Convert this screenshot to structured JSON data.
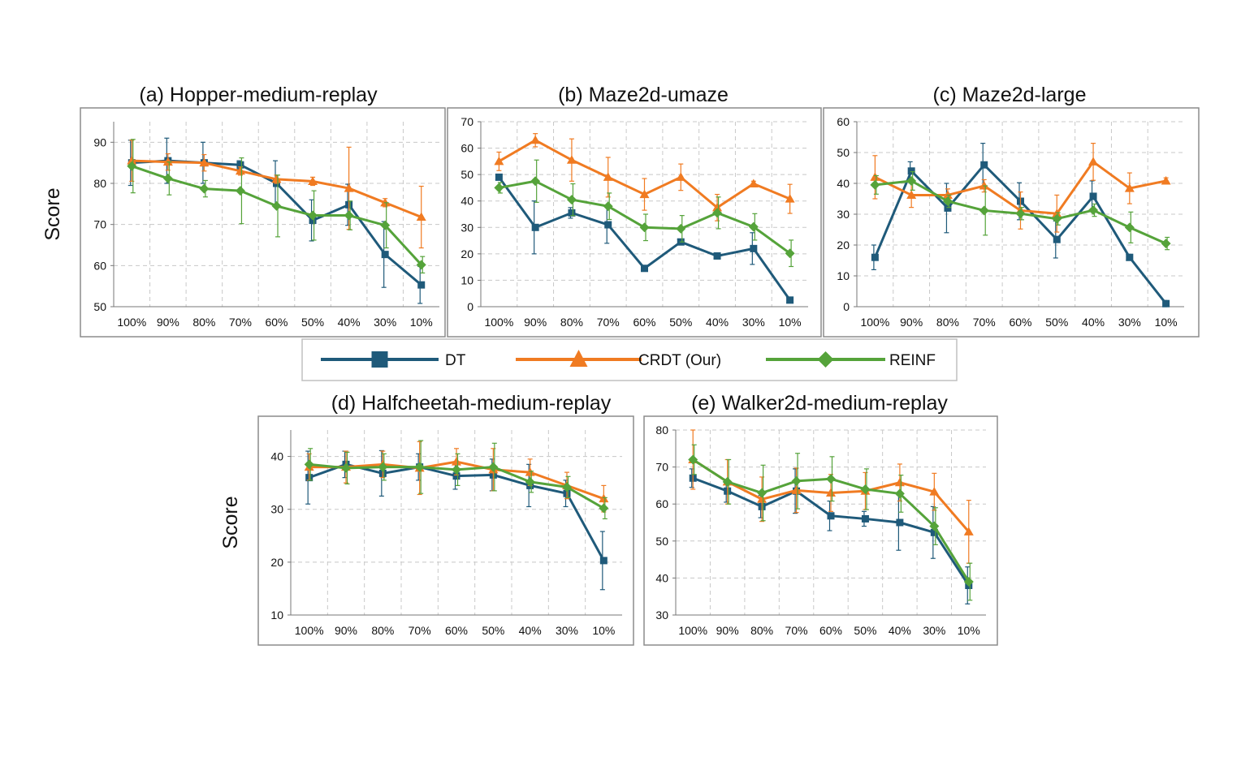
{
  "colors": {
    "DT": "#1f5a7a",
    "CRDT": "#f07b22",
    "REINF": "#55a33a",
    "frame": "#8c8c8c",
    "grid": "#c8c8c8"
  },
  "legend": [
    {
      "key": "DT",
      "label": "DT",
      "marker": "square"
    },
    {
      "key": "CRDT",
      "label": "CRDT (Our)",
      "marker": "triangle"
    },
    {
      "key": "REINF",
      "label": "REINF",
      "marker": "diamond"
    }
  ],
  "chart_data": [
    {
      "id": "a",
      "type": "line",
      "title": "(a) Hopper-medium-replay",
      "ylabel": "Score",
      "categories": [
        "100%",
        "90%",
        "80%",
        "70%",
        "60%",
        "50%",
        "40%",
        "30%",
        "10%"
      ],
      "ylim": [
        50,
        95
      ],
      "yticks": [
        50,
        60,
        70,
        80,
        90
      ],
      "series": [
        {
          "name": "DT",
          "values": [
            85,
            85.5,
            85,
            84.5,
            80,
            71,
            74.8,
            62.7,
            55.3
          ],
          "errors": [
            5.5,
            5.5,
            5,
            1,
            5.5,
            5,
            5,
            8,
            4.5
          ]
        },
        {
          "name": "CRDT (Our)",
          "values": [
            85.5,
            85.2,
            85,
            83,
            81,
            80.5,
            78.8,
            75.3,
            71.8
          ],
          "errors": [
            5,
            2,
            2,
            1,
            1,
            1,
            10,
            1,
            7.5
          ]
        },
        {
          "name": "REINF",
          "values": [
            84.2,
            81.2,
            78.7,
            78.2,
            74.5,
            72.2,
            72.2,
            69.8,
            60.2
          ],
          "errors": [
            6.5,
            4,
            2,
            8,
            7.5,
            6,
            3.5,
            5.5,
            2
          ]
        }
      ]
    },
    {
      "id": "b",
      "type": "line",
      "title": "(b) Maze2d-umaze",
      "ylabel": "",
      "categories": [
        "100%",
        "90%",
        "80%",
        "70%",
        "60%",
        "50%",
        "40%",
        "30%",
        "10%"
      ],
      "ylim": [
        0,
        70
      ],
      "yticks": [
        0,
        10,
        20,
        30,
        40,
        50,
        60,
        70
      ],
      "series": [
        {
          "name": "DT",
          "values": [
            49,
            30,
            35.5,
            31,
            14.5,
            24.5,
            19.2,
            22,
            2.5
          ],
          "errors": [
            1,
            10,
            2,
            7,
            1,
            1,
            1,
            6,
            1
          ]
        },
        {
          "name": "CRDT (Our)",
          "values": [
            55,
            63,
            55.5,
            49,
            42.5,
            49,
            37.5,
            46.5,
            40.8
          ],
          "errors": [
            3.5,
            2.5,
            8,
            7.5,
            6,
            5,
            5,
            1,
            5.5
          ]
        },
        {
          "name": "REINF",
          "values": [
            45,
            47.5,
            40.5,
            38,
            30,
            29.5,
            35.5,
            30.2,
            20.2
          ],
          "errors": [
            2,
            8,
            6,
            5,
            5,
            5,
            6,
            5,
            5
          ]
        }
      ]
    },
    {
      "id": "c",
      "type": "line",
      "title": "(c) Maze2d-large",
      "ylabel": "",
      "categories": [
        "100%",
        "90%",
        "80%",
        "70%",
        "60%",
        "50%",
        "40%",
        "30%",
        "10%"
      ],
      "ylim": [
        0,
        60
      ],
      "yticks": [
        0,
        10,
        20,
        30,
        40,
        50,
        60
      ],
      "series": [
        {
          "name": "DT",
          "values": [
            16,
            44,
            32,
            46,
            34.2,
            21.8,
            35.8,
            16,
            1
          ],
          "errors": [
            4,
            3,
            8,
            7,
            6,
            6,
            5,
            1,
            1
          ]
        },
        {
          "name": "CRDT (Our)",
          "values": [
            42,
            36.2,
            36.2,
            39.2,
            31.2,
            30.2,
            47,
            38.4,
            40.8
          ],
          "errors": [
            7,
            4,
            2,
            2,
            6,
            6,
            6,
            5,
            1
          ]
        },
        {
          "name": "REINF",
          "values": [
            39.5,
            40.8,
            34.2,
            31.2,
            30.2,
            28.5,
            31.3,
            25.7,
            20.5
          ],
          "errors": [
            3,
            3,
            2,
            8,
            2,
            2,
            2,
            5,
            2
          ]
        }
      ]
    },
    {
      "id": "d",
      "type": "line",
      "title": "(d) Halfcheetah-medium-replay",
      "ylabel": "Score",
      "categories": [
        "100%",
        "90%",
        "80%",
        "70%",
        "60%",
        "50%",
        "40%",
        "30%",
        "10%"
      ],
      "ylim": [
        10,
        45
      ],
      "yticks": [
        10,
        20,
        30,
        40
      ],
      "series": [
        {
          "name": "DT",
          "values": [
            36,
            38.5,
            36.8,
            38,
            36.3,
            36.5,
            34.5,
            33,
            20.3
          ],
          "errors": [
            5,
            2.5,
            4.3,
            2.5,
            2.5,
            3,
            4,
            2.5,
            5.5
          ]
        },
        {
          "name": "CRDT (Our)",
          "values": [
            38,
            38,
            38.5,
            37.8,
            39,
            37.5,
            37,
            34.5,
            32
          ],
          "errors": [
            2.5,
            3,
            2.5,
            5,
            2.5,
            4,
            2.5,
            2.5,
            2.5
          ]
        },
        {
          "name": "REINF",
          "values": [
            38.5,
            37.8,
            38,
            38,
            37.5,
            38,
            35.2,
            34.2,
            30.2
          ],
          "errors": [
            3,
            3,
            2.5,
            5,
            3,
            4.5,
            2,
            2,
            2
          ]
        }
      ]
    },
    {
      "id": "e",
      "type": "line",
      "title": "(e) Walker2d-medium-replay",
      "ylabel": "",
      "categories": [
        "100%",
        "90%",
        "80%",
        "70%",
        "60%",
        "50%",
        "40%",
        "30%",
        "10%"
      ],
      "ylim": [
        30,
        80
      ],
      "yticks": [
        30,
        40,
        50,
        60,
        70,
        80
      ],
      "series": [
        {
          "name": "DT",
          "values": [
            67,
            63.5,
            59.3,
            63.5,
            56.8,
            56,
            55,
            52.3,
            38
          ],
          "errors": [
            2.5,
            3,
            3,
            6,
            4,
            2,
            7.5,
            7,
            5
          ]
        },
        {
          "name": "CRDT (Our)",
          "values": [
            72,
            66,
            61.3,
            63.7,
            63,
            63.5,
            65.8,
            63.3,
            52.5
          ],
          "errors": [
            8,
            6,
            6,
            6,
            5,
            5,
            5,
            5,
            8.5
          ]
        },
        {
          "name": "REINF",
          "values": [
            72,
            66,
            63,
            66.2,
            66.8,
            64,
            62.8,
            54,
            39
          ],
          "errors": [
            4,
            6,
            7.5,
            7.5,
            6,
            5.5,
            5,
            5,
            5
          ]
        }
      ]
    }
  ]
}
